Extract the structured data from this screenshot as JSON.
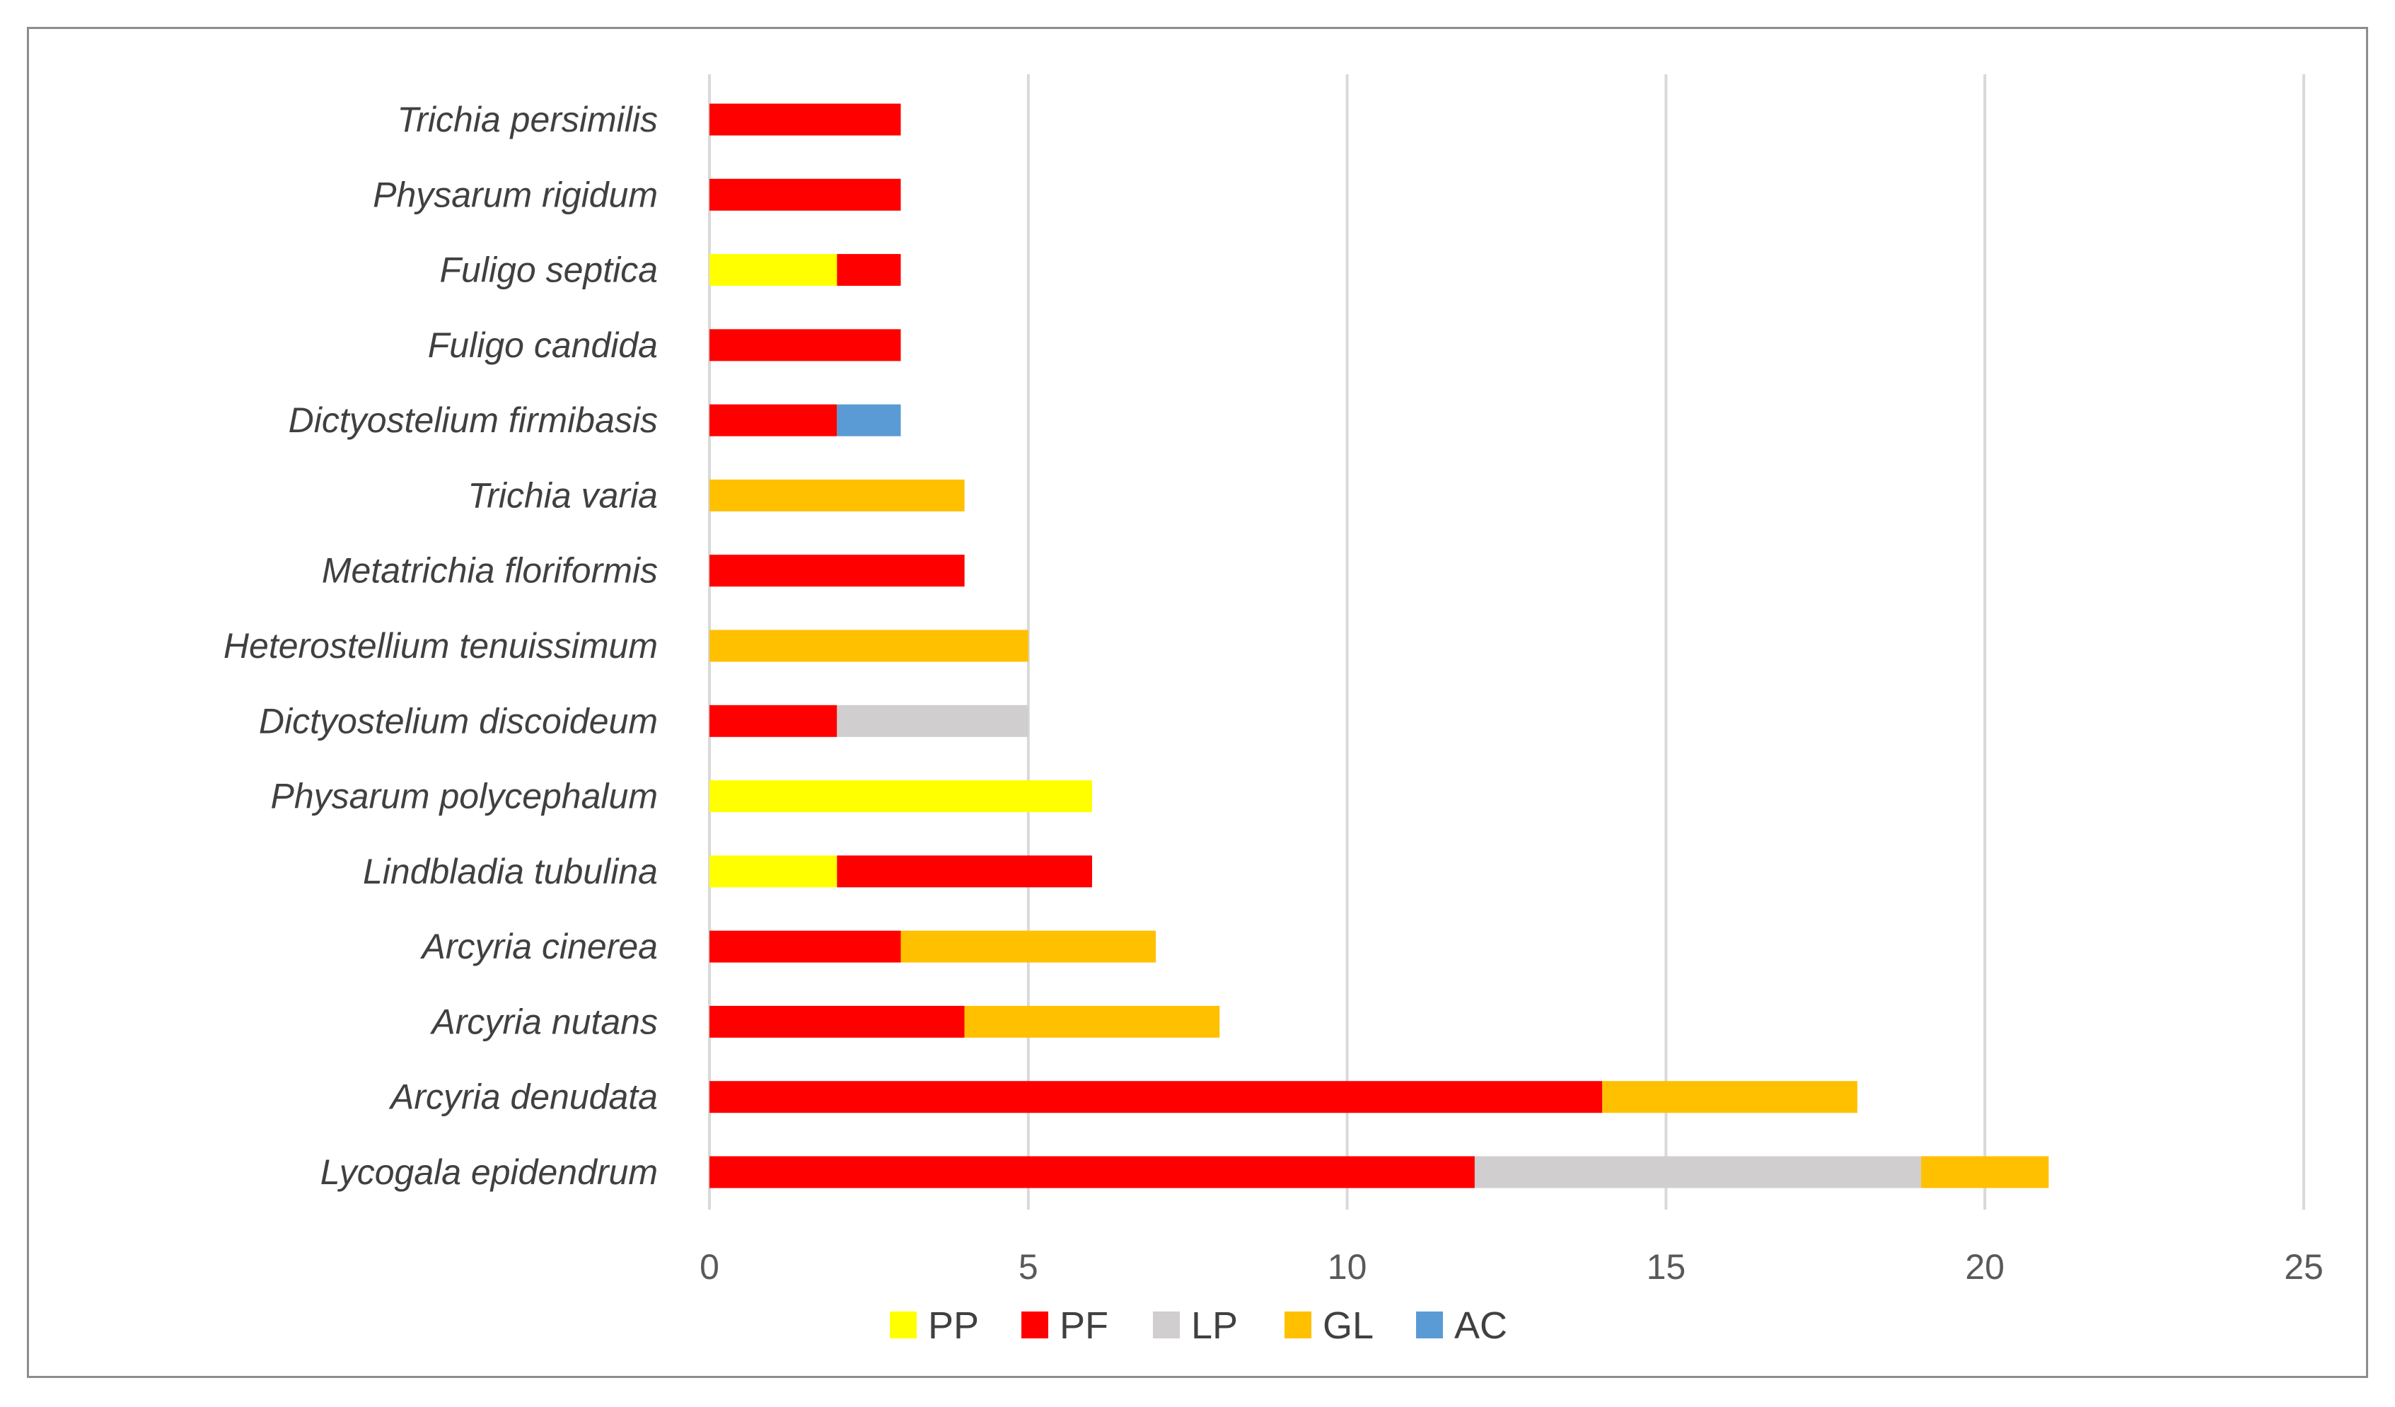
{
  "chart_data": {
    "type": "bar",
    "orientation": "horizontal",
    "stacked": true,
    "categories": [
      "Lycogala epidendrum",
      "Arcyria denudata",
      "Arcyria nutans",
      "Arcyria cinerea",
      "Lindbladia tubulina",
      "Physarum polycephalum",
      "Dictyostelium discoideum",
      "Heterostellium tenuissimum",
      "Metatrichia floriformis",
      "Trichia varia",
      "Dictyostelium firmibasis",
      "Fuligo candida",
      "Fuligo septica",
      "Physarum rigidum",
      "Trichia persimilis"
    ],
    "series": [
      {
        "name": "PP",
        "color": "#ffff00",
        "values": [
          0,
          0,
          0,
          0,
          2,
          6,
          0,
          0,
          0,
          0,
          0,
          0,
          2,
          0,
          0
        ]
      },
      {
        "name": "PF",
        "color": "#ff0000",
        "values": [
          12,
          14,
          4,
          3,
          4,
          0,
          2,
          0,
          4,
          0,
          2,
          3,
          1,
          3,
          3
        ]
      },
      {
        "name": "LP",
        "color": "#d0cece",
        "values": [
          7,
          0,
          0,
          0,
          0,
          0,
          3,
          0,
          0,
          0,
          0,
          0,
          0,
          0,
          0
        ]
      },
      {
        "name": "GL",
        "color": "#ffc000",
        "values": [
          2,
          4,
          4,
          4,
          0,
          0,
          0,
          5,
          0,
          4,
          0,
          0,
          0,
          0,
          0
        ]
      },
      {
        "name": "AC",
        "color": "#5b9bd5",
        "values": [
          0,
          0,
          0,
          0,
          0,
          0,
          0,
          0,
          0,
          0,
          1,
          0,
          0,
          0,
          0
        ]
      }
    ],
    "xlim": [
      0,
      25
    ],
    "xticks": [
      "0",
      "5",
      "10",
      "15",
      "20",
      "25"
    ],
    "grid": "vertical",
    "legend_position": "bottom",
    "title": "",
    "xlabel": "",
    "ylabel": ""
  }
}
